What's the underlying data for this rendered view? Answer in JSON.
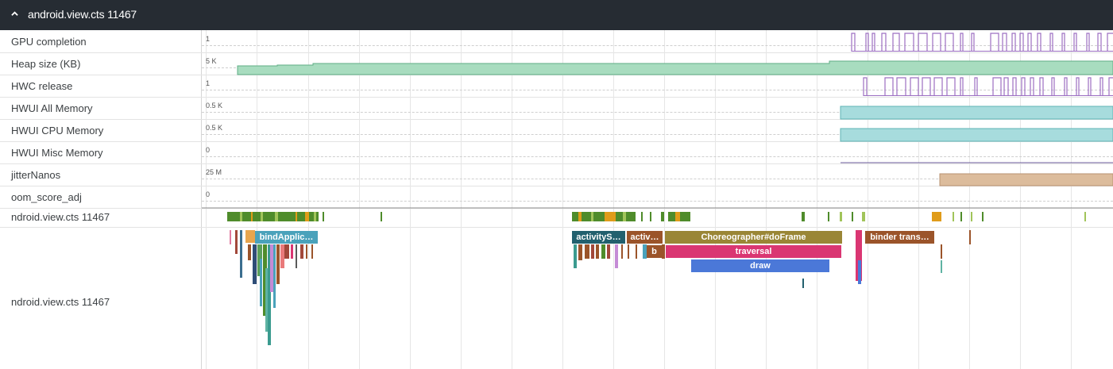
{
  "process_header": {
    "title": "android.view.cts 11467"
  },
  "tracks": [
    {
      "name": "GPU completion",
      "scale": "1"
    },
    {
      "name": "Heap size (KB)",
      "scale": "5 K"
    },
    {
      "name": "HWC release",
      "scale": "1"
    },
    {
      "name": "HWUI All Memory",
      "scale": "0.5 K"
    },
    {
      "name": "HWUI CPU Memory",
      "scale": "0.5 K"
    },
    {
      "name": "HWUI Misc Memory",
      "scale": "0"
    },
    {
      "name": "jitterNanos",
      "scale": "25 M"
    },
    {
      "name": "oom_score_adj",
      "scale": "0"
    },
    {
      "name": "ndroid.view.cts 11467",
      "scale": ""
    },
    {
      "name": "ndroid.view.cts 11467",
      "scale": ""
    }
  ],
  "slices": {
    "bind": "bindApplic…",
    "activity_s": "activityS…",
    "activ": "activ…",
    "b": "b",
    "choreographer": "Choreographer#doFrame",
    "traversal": "traversal",
    "draw": "draw",
    "binder": "binder trans…"
  },
  "colors": {
    "header_bg": "#262c33",
    "counter_purple": "#9c6fc2",
    "heap_green": "#a8dcbf",
    "hwui_teal": "#a7dcdd",
    "jitter_tan": "#dcbc9c",
    "slice_teal": "#4aa2bb",
    "slice_dark_teal": "#22606e",
    "slice_brown": "#9b542a",
    "slice_olive": "#9a8636",
    "slice_pink": "#da3672",
    "slice_blue": "#4b78d8"
  }
}
